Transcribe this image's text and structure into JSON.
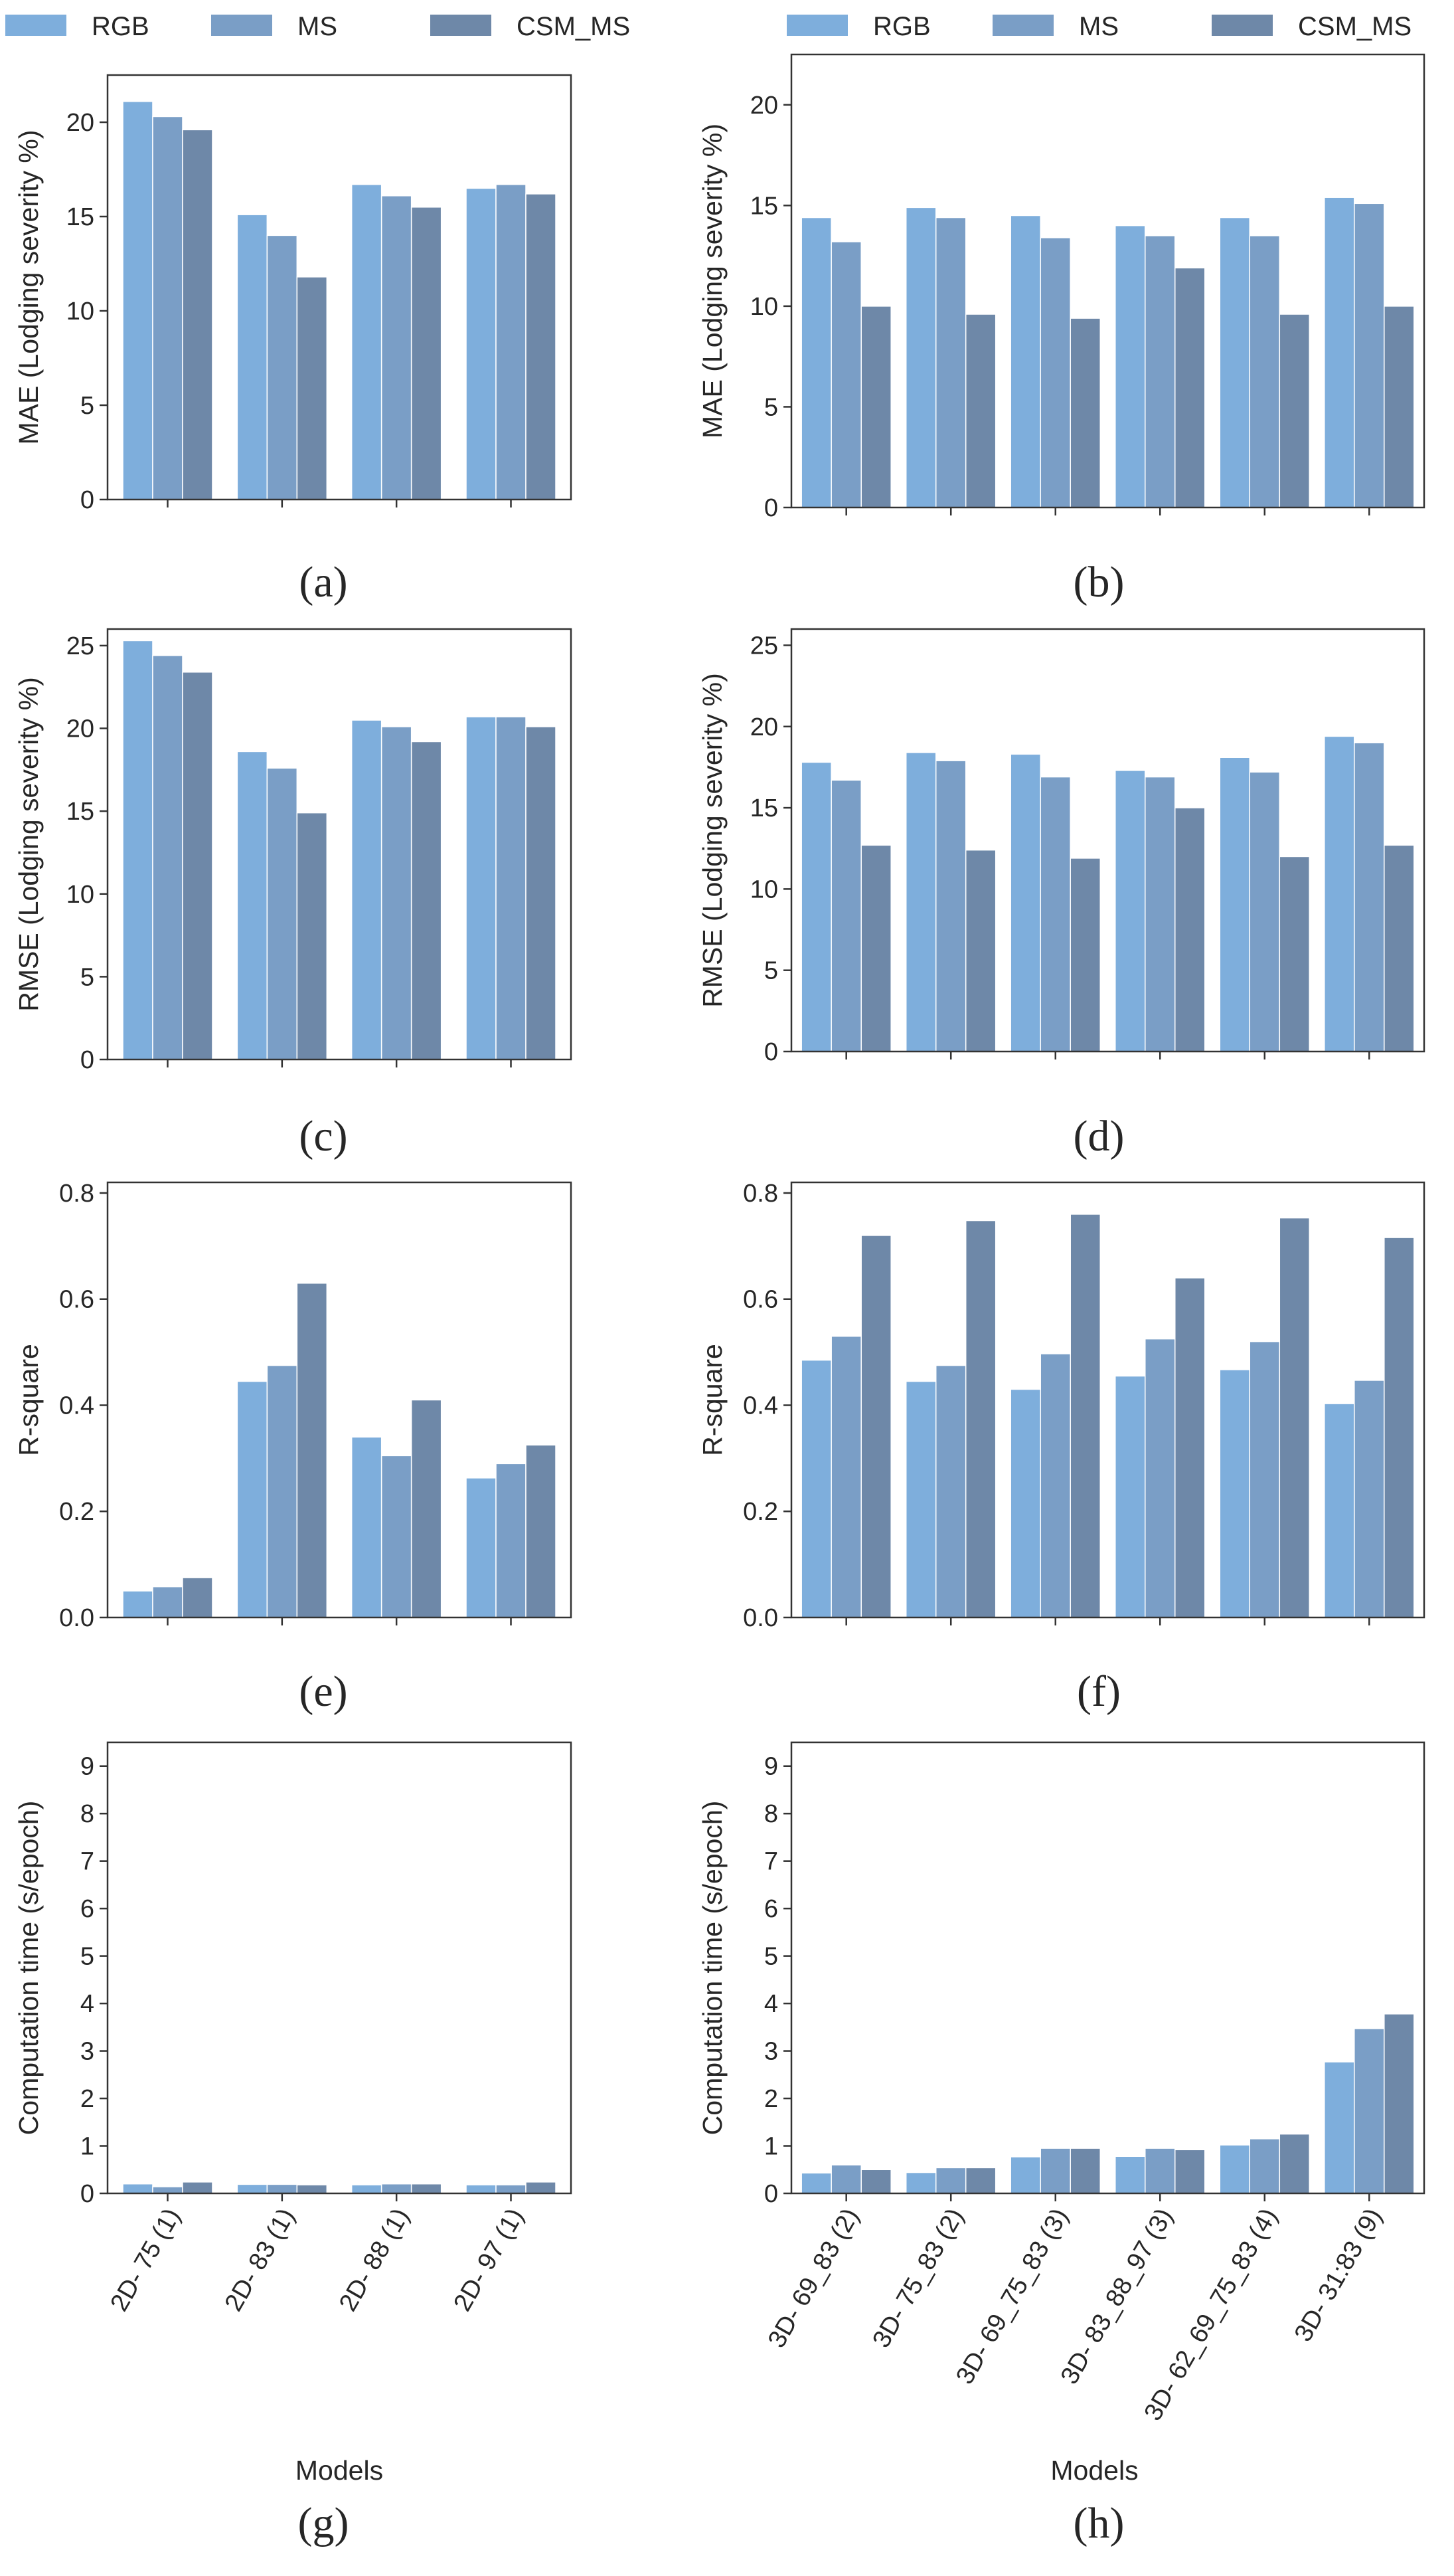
{
  "legend": [
    "RGB",
    "MS",
    "CSM_MS"
  ],
  "colors": {
    "RGB": "#7eaedc",
    "MS": "#7a9ec6",
    "CSM_MS": "#6e88a8"
  },
  "x_label": "Models",
  "chart_data": [
    {
      "type": "bar",
      "panel": "(a)",
      "title": "",
      "xlabel": "",
      "ylabel": "MAE (Lodging severity %)",
      "ylim": [
        0,
        22.5
      ],
      "yticks": [
        0,
        5,
        10,
        15,
        20
      ],
      "categories": [
        "2D- 75 (1)",
        "2D- 83 (1)",
        "2D- 88 (1)",
        "2D- 97 (1)"
      ],
      "show_xticklabels": false,
      "series": [
        {
          "name": "RGB",
          "values": [
            21.1,
            15.1,
            16.7,
            16.5
          ]
        },
        {
          "name": "MS",
          "values": [
            20.3,
            14.0,
            16.1,
            16.7
          ]
        },
        {
          "name": "CSM_MS",
          "values": [
            19.6,
            11.8,
            15.5,
            16.2
          ]
        }
      ]
    },
    {
      "type": "bar",
      "panel": "(b)",
      "title": "",
      "xlabel": "",
      "ylabel": "MAE (Lodging severity %)",
      "ylim": [
        0,
        22.5
      ],
      "yticks": [
        0,
        5,
        10,
        15,
        20
      ],
      "categories": [
        "3D- 69_83 (2)",
        "3D- 75_83 (2)",
        "3D- 69_75_83 (3)",
        "3D- 83_88_97 (3)",
        "3D- 62_69_75_83 (4)",
        "3D- 31:83 (9)"
      ],
      "show_xticklabels": false,
      "series": [
        {
          "name": "RGB",
          "values": [
            14.4,
            14.9,
            14.5,
            14.0,
            14.4,
            15.4
          ]
        },
        {
          "name": "MS",
          "values": [
            13.2,
            14.4,
            13.4,
            13.5,
            13.5,
            15.1
          ]
        },
        {
          "name": "CSM_MS",
          "values": [
            10.0,
            9.6,
            9.4,
            11.9,
            9.6,
            10.0
          ]
        }
      ]
    },
    {
      "type": "bar",
      "panel": "(c)",
      "title": "",
      "xlabel": "",
      "ylabel": "RMSE (Lodging severity %)",
      "ylim": [
        0,
        26
      ],
      "yticks": [
        0,
        5,
        10,
        15,
        20,
        25
      ],
      "categories": [
        "2D- 75 (1)",
        "2D- 83 (1)",
        "2D- 88 (1)",
        "2D- 97 (1)"
      ],
      "show_xticklabels": false,
      "series": [
        {
          "name": "RGB",
          "values": [
            25.3,
            18.6,
            20.5,
            20.7
          ]
        },
        {
          "name": "MS",
          "values": [
            24.4,
            17.6,
            20.1,
            20.7
          ]
        },
        {
          "name": "CSM_MS",
          "values": [
            23.4,
            14.9,
            19.2,
            20.1
          ]
        }
      ]
    },
    {
      "type": "bar",
      "panel": "(d)",
      "title": "",
      "xlabel": "",
      "ylabel": "RMSE (Lodging severity %)",
      "ylim": [
        0,
        26
      ],
      "yticks": [
        0,
        5,
        10,
        15,
        20,
        25
      ],
      "categories": [
        "3D- 69_83 (2)",
        "3D- 75_83 (2)",
        "3D- 69_75_83 (3)",
        "3D- 83_88_97 (3)",
        "3D- 62_69_75_83 (4)",
        "3D- 31:83 (9)"
      ],
      "show_xticklabels": false,
      "series": [
        {
          "name": "RGB",
          "values": [
            17.8,
            18.4,
            18.3,
            17.3,
            18.1,
            19.4
          ]
        },
        {
          "name": "MS",
          "values": [
            16.7,
            17.9,
            16.9,
            16.9,
            17.2,
            19.0
          ]
        },
        {
          "name": "CSM_MS",
          "values": [
            12.7,
            12.4,
            11.9,
            15.0,
            12.0,
            12.7
          ]
        }
      ]
    },
    {
      "type": "bar",
      "panel": "(e)",
      "title": "",
      "xlabel": "",
      "ylabel": "R-square",
      "ylim": [
        0,
        0.82
      ],
      "yticks": [
        0.0,
        0.2,
        0.4,
        0.6,
        0.8
      ],
      "tick_format": "1dp",
      "categories": [
        "2D- 75 (1)",
        "2D- 83 (1)",
        "2D- 88 (1)",
        "2D- 97 (1)"
      ],
      "show_xticklabels": false,
      "series": [
        {
          "name": "RGB",
          "values": [
            0.05,
            0.445,
            0.34,
            0.263
          ]
        },
        {
          "name": "MS",
          "values": [
            0.058,
            0.475,
            0.305,
            0.29
          ]
        },
        {
          "name": "CSM_MS",
          "values": [
            0.075,
            0.63,
            0.41,
            0.325
          ]
        }
      ]
    },
    {
      "type": "bar",
      "panel": "(f)",
      "title": "",
      "xlabel": "",
      "ylabel": "R-square",
      "ylim": [
        0,
        0.82
      ],
      "yticks": [
        0.0,
        0.2,
        0.4,
        0.6,
        0.8
      ],
      "tick_format": "1dp",
      "categories": [
        "3D- 69_83 (2)",
        "3D- 75_83 (2)",
        "3D- 69_75_83 (3)",
        "3D- 83_88_97 (3)",
        "3D- 62_69_75_83 (4)",
        "3D- 31:83 (9)"
      ],
      "show_xticklabels": false,
      "series": [
        {
          "name": "RGB",
          "values": [
            0.485,
            0.445,
            0.43,
            0.455,
            0.467,
            0.403
          ]
        },
        {
          "name": "MS",
          "values": [
            0.53,
            0.475,
            0.497,
            0.525,
            0.52,
            0.447
          ]
        },
        {
          "name": "CSM_MS",
          "values": [
            0.72,
            0.748,
            0.76,
            0.64,
            0.753,
            0.716
          ]
        }
      ]
    },
    {
      "type": "bar",
      "panel": "(g)",
      "title": "",
      "xlabel": "Models",
      "ylabel": "Computation time (s/epoch)",
      "ylim": [
        0,
        9.5
      ],
      "yticks": [
        0,
        1,
        2,
        3,
        4,
        5,
        6,
        7,
        8,
        9
      ],
      "categories": [
        "2D- 75 (1)",
        "2D- 83 (1)",
        "2D- 88 (1)",
        "2D- 97 (1)"
      ],
      "show_xticklabels": true,
      "series": [
        {
          "name": "RGB",
          "values": [
            0.2,
            0.19,
            0.18,
            0.18
          ]
        },
        {
          "name": "MS",
          "values": [
            0.14,
            0.19,
            0.2,
            0.18
          ]
        },
        {
          "name": "CSM_MS",
          "values": [
            0.24,
            0.18,
            0.2,
            0.24
          ]
        }
      ]
    },
    {
      "type": "bar",
      "panel": "(h)",
      "title": "",
      "xlabel": "Models",
      "ylabel": "Computation time (s/epoch)",
      "ylim": [
        0,
        9.5
      ],
      "yticks": [
        0,
        1,
        2,
        3,
        4,
        5,
        6,
        7,
        8,
        9
      ],
      "categories": [
        "3D- 69_83 (2)",
        "3D- 75_83 (2)",
        "3D- 69_75_83 (3)",
        "3D- 83_88_97 (3)",
        "3D- 62_69_75_83 (4)",
        "3D- 31:83 (9)"
      ],
      "show_xticklabels": true,
      "series": [
        {
          "name": "RGB",
          "values": [
            0.43,
            0.44,
            0.77,
            0.78,
            1.02,
            2.77
          ]
        },
        {
          "name": "MS",
          "values": [
            0.6,
            0.54,
            0.95,
            0.95,
            1.15,
            3.47
          ]
        },
        {
          "name": "CSM_MS",
          "values": [
            0.5,
            0.54,
            0.95,
            0.92,
            1.25,
            3.78
          ]
        }
      ]
    }
  ]
}
